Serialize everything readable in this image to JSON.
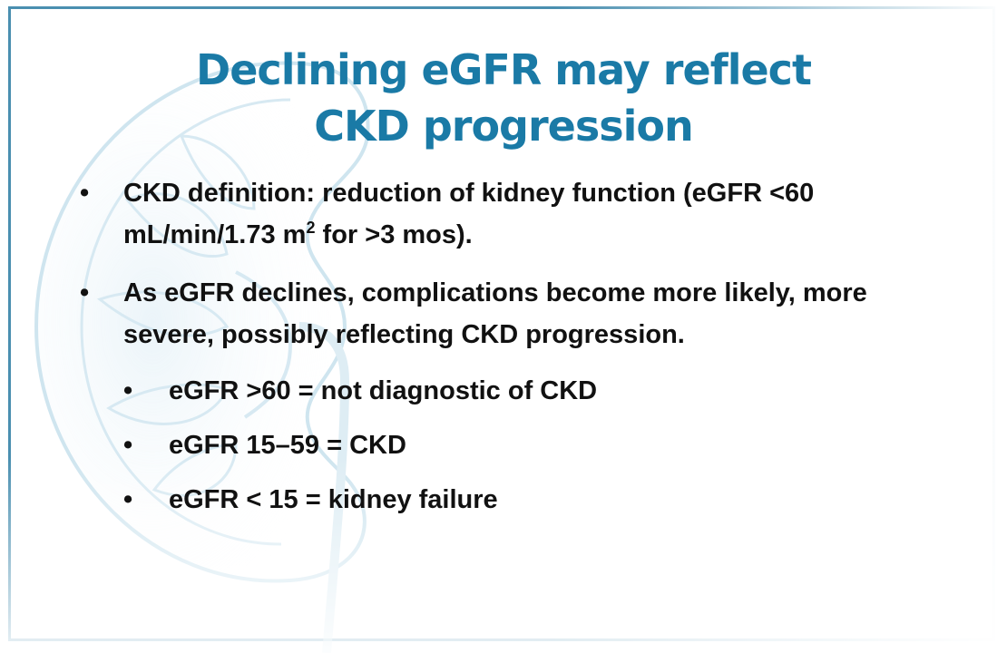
{
  "slide": {
    "title_line1": "Declining eGFR may reflect",
    "title_line2": "CKD progression",
    "bullets": [
      {
        "line1": "CKD definition: reduction of kidney function (eGFR <60",
        "line2_pre": "mL/min/1.73 m",
        "line2_sup": "2",
        "line2_post": " for >3 mos)."
      },
      {
        "line1": "As eGFR declines, complications become more likely, more",
        "line2": "severe, possibly reflecting CKD progression."
      }
    ],
    "sub_bullets": [
      "eGFR >60 = not diagnostic of CKD",
      "eGFR 15–59 = CKD",
      "eGFR < 15 = kidney failure"
    ],
    "bullet_glyph": "•",
    "colors": {
      "title": "#1a7aa6",
      "frame": "#4a8fb0",
      "text": "#111111",
      "background_art": "#9fc9de"
    },
    "icons": {
      "background_art": "kidney-illustration"
    }
  }
}
